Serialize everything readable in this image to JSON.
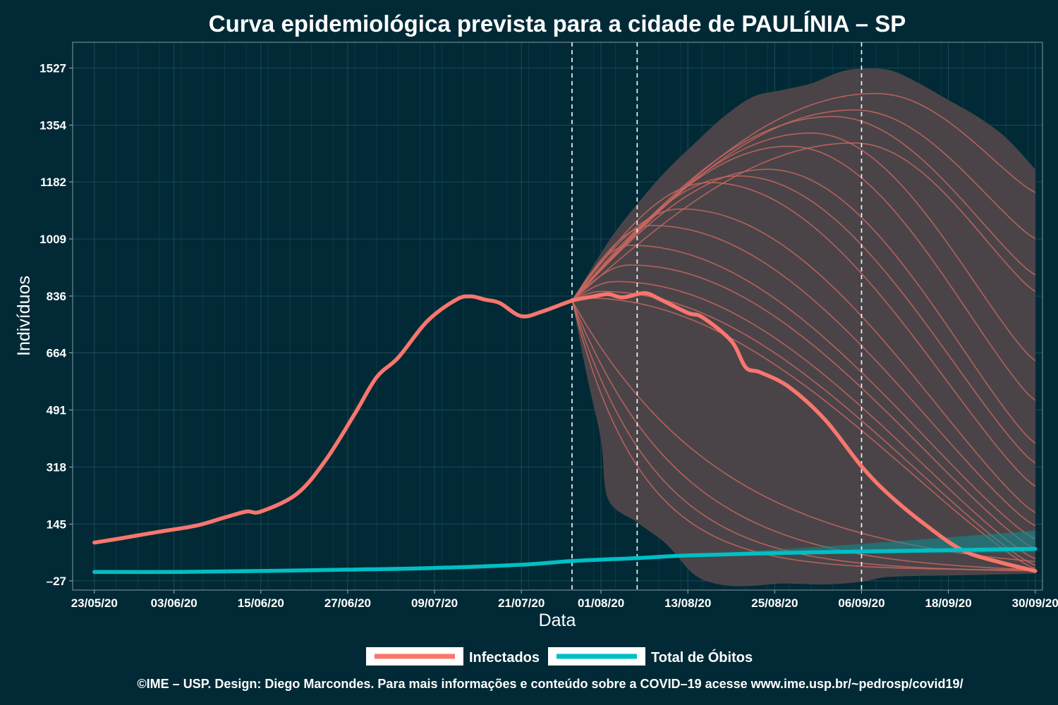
{
  "chart_data": {
    "type": "line",
    "title": "Curva epidemiológica prevista para a cidade de PAULÍNIA – SP",
    "xlabel": "Data",
    "ylabel": "Indivíduos",
    "x_range": [
      "2020-05-20",
      "2020-10-01"
    ],
    "ylim": [
      -55,
      1605
    ],
    "y_ticks": [
      -27,
      145,
      318,
      491,
      664,
      836,
      1009,
      1182,
      1354,
      1527
    ],
    "y_tick_labels": [
      "–27",
      "145",
      "318",
      "491",
      "664",
      "836",
      "1009",
      "1182",
      "1354",
      "1527"
    ],
    "x_ticks": [
      "2020-05-23",
      "2020-06-03",
      "2020-06-15",
      "2020-06-27",
      "2020-07-09",
      "2020-07-21",
      "2020-08-01",
      "2020-08-13",
      "2020-08-25",
      "2020-09-06",
      "2020-09-18",
      "2020-09-30"
    ],
    "x_tick_labels": [
      "23/05/20",
      "03/06/20",
      "15/06/20",
      "27/06/20",
      "09/07/20",
      "21/07/20",
      "01/08/20",
      "13/08/20",
      "25/08/20",
      "06/09/20",
      "18/09/20",
      "30/09/20"
    ],
    "vertical_lines": [
      "2020-07-28",
      "2020-08-06",
      "2020-09-06"
    ],
    "grid": true,
    "legend_position": "bottom",
    "series": [
      {
        "name": "Infectados",
        "color": "#f8766d",
        "points": [
          [
            "2020-05-23",
            89
          ],
          [
            "2020-05-27",
            103
          ],
          [
            "2020-06-01",
            122
          ],
          [
            "2020-06-06",
            140
          ],
          [
            "2020-06-10",
            165
          ],
          [
            "2020-06-13",
            183
          ],
          [
            "2020-06-15",
            183
          ],
          [
            "2020-06-20",
            237
          ],
          [
            "2020-06-24",
            340
          ],
          [
            "2020-06-28",
            480
          ],
          [
            "2020-07-01",
            590
          ],
          [
            "2020-07-04",
            650
          ],
          [
            "2020-07-08",
            760
          ],
          [
            "2020-07-12",
            825
          ],
          [
            "2020-07-14",
            835
          ],
          [
            "2020-07-16",
            825
          ],
          [
            "2020-07-18",
            815
          ],
          [
            "2020-07-21",
            775
          ],
          [
            "2020-07-24",
            790
          ],
          [
            "2020-07-28",
            822
          ],
          [
            "2020-07-31",
            835
          ],
          [
            "2020-08-02",
            842
          ],
          [
            "2020-08-04",
            832
          ],
          [
            "2020-08-07",
            845
          ],
          [
            "2020-08-09",
            828
          ],
          [
            "2020-08-13",
            785
          ],
          [
            "2020-08-15",
            772
          ],
          [
            "2020-08-19",
            700
          ],
          [
            "2020-08-21",
            620
          ],
          [
            "2020-08-23",
            605
          ],
          [
            "2020-08-27",
            560
          ],
          [
            "2020-09-01",
            460
          ],
          [
            "2020-09-06",
            320
          ],
          [
            "2020-09-10",
            230
          ],
          [
            "2020-09-15",
            140
          ],
          [
            "2020-09-20",
            65
          ],
          [
            "2020-09-25",
            30
          ],
          [
            "2020-09-30",
            3
          ]
        ]
      },
      {
        "name": "Total de Óbitos",
        "color": "#00bfc4",
        "points": [
          [
            "2020-05-23",
            0
          ],
          [
            "2020-06-03",
            0
          ],
          [
            "2020-06-15",
            3
          ],
          [
            "2020-06-27",
            7
          ],
          [
            "2020-07-09",
            12
          ],
          [
            "2020-07-21",
            22
          ],
          [
            "2020-07-28",
            33
          ],
          [
            "2020-08-06",
            42
          ],
          [
            "2020-08-13",
            50
          ],
          [
            "2020-08-25",
            57
          ],
          [
            "2020-09-06",
            62
          ],
          [
            "2020-09-18",
            66
          ],
          [
            "2020-09-30",
            70
          ]
        ]
      }
    ],
    "forecast": {
      "start": "2020-07-28",
      "end": "2020-09-30",
      "band_upper": [
        [
          "2020-07-28",
          822
        ],
        [
          "2020-08-02",
          1000
        ],
        [
          "2020-08-06",
          1115
        ],
        [
          "2020-08-10",
          1215
        ],
        [
          "2020-08-14",
          1300
        ],
        [
          "2020-08-18",
          1380
        ],
        [
          "2020-08-22",
          1440
        ],
        [
          "2020-08-26",
          1460
        ],
        [
          "2020-08-30",
          1480
        ],
        [
          "2020-09-03",
          1515
        ],
        [
          "2020-09-06",
          1525
        ],
        [
          "2020-09-10",
          1520
        ],
        [
          "2020-09-14",
          1480
        ],
        [
          "2020-09-18",
          1430
        ],
        [
          "2020-09-22",
          1380
        ],
        [
          "2020-09-26",
          1315
        ],
        [
          "2020-09-30",
          1220
        ]
      ],
      "band_lower": [
        [
          "2020-07-28",
          822
        ],
        [
          "2020-07-30",
          600
        ],
        [
          "2020-08-01",
          400
        ],
        [
          "2020-08-02",
          220
        ],
        [
          "2020-08-06",
          150
        ],
        [
          "2020-08-10",
          85
        ],
        [
          "2020-08-14",
          -10
        ],
        [
          "2020-08-18",
          -40
        ],
        [
          "2020-08-22",
          -42
        ],
        [
          "2020-08-26",
          -35
        ],
        [
          "2020-09-01",
          -38
        ],
        [
          "2020-09-06",
          -30
        ],
        [
          "2020-09-10",
          -15
        ],
        [
          "2020-09-20",
          -10
        ],
        [
          "2020-09-30",
          -5
        ]
      ],
      "infected_scenarios": [
        {
          "peak_date": "2020-09-08",
          "peak": 1450,
          "end_value": 1150
        },
        {
          "peak_date": "2020-09-05",
          "peak": 1400,
          "end_value": 1010
        },
        {
          "peak_date": "2020-09-02",
          "peak": 1380,
          "end_value": 900
        },
        {
          "peak_date": "2020-09-05",
          "peak": 1300,
          "end_value": 850
        },
        {
          "peak_date": "2020-08-30",
          "peak": 1330,
          "end_value": 640
        },
        {
          "peak_date": "2020-08-27",
          "peak": 1290,
          "end_value": 520
        },
        {
          "peak_date": "2020-08-24",
          "peak": 1220,
          "end_value": 390
        },
        {
          "peak_date": "2020-08-20",
          "peak": 1200,
          "end_value": 330
        },
        {
          "peak_date": "2020-08-16",
          "peak": 1180,
          "end_value": 260
        },
        {
          "peak_date": "2020-08-12",
          "peak": 1100,
          "end_value": 180
        },
        {
          "peak_date": "2020-08-08",
          "peak": 1050,
          "end_value": 140
        },
        {
          "peak_date": "2020-08-05",
          "peak": 990,
          "end_value": 100
        },
        {
          "peak_date": "2020-08-05",
          "peak": 930,
          "end_value": 70
        },
        {
          "peak_date": "2020-08-03",
          "peak": 880,
          "end_value": 40
        },
        {
          "peak_date": "2020-08-01",
          "peak": 850,
          "end_value": 20
        },
        {
          "peak_date": "2020-07-30",
          "peak": 830,
          "end_value": 10
        },
        {
          "peak_date": "2020-07-28",
          "peak": 822,
          "end_value": 5
        },
        {
          "peak_date": "2020-07-28",
          "peak": 822,
          "end_value": 0
        },
        {
          "peak_date": "2020-07-28",
          "peak": 822,
          "end_value": -5
        },
        {
          "peak_date": "2020-07-28",
          "peak": 822,
          "end_value": -10
        }
      ],
      "deaths_band": [
        [
          "2020-08-13",
          50,
          50
        ],
        [
          "2020-09-06",
          55,
          85
        ],
        [
          "2020-09-30",
          60,
          125
        ]
      ]
    }
  },
  "legend": {
    "infected_label": "Infectados",
    "deaths_label": "Total de Óbitos"
  },
  "footer": "©IME – USP. Design: Diego Marcondes. Para mais informações e conteúdo sobre a COVID–19 acesse www.ime.usp.br/~pedrosp/covid19/"
}
